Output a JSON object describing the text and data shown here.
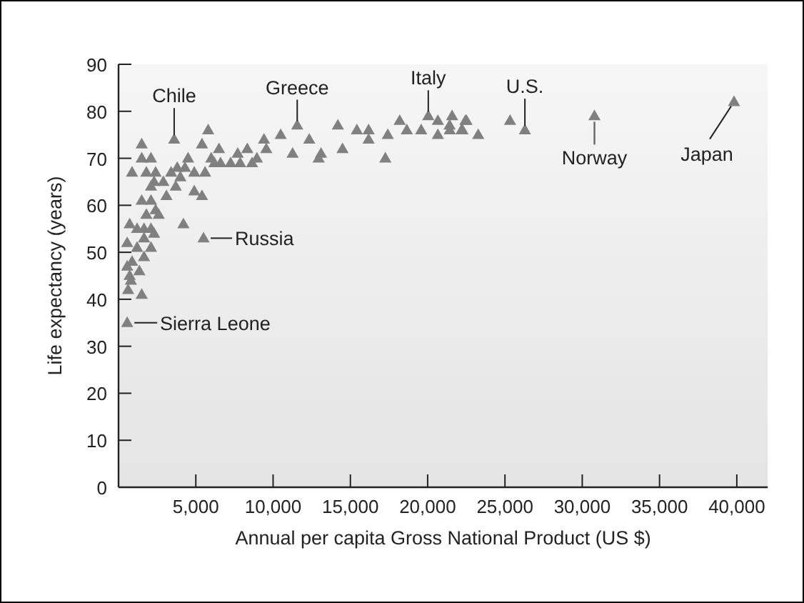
{
  "chart_data": {
    "type": "scatter",
    "xlabel": "Annual per capita Gross National Product (US $)",
    "ylabel": "Life expectancy (years)",
    "xlim": [
      0,
      42000
    ],
    "ylim": [
      0,
      90
    ],
    "xticks": [
      {
        "value": 5000,
        "label": "5,000"
      },
      {
        "value": 10000,
        "label": "10,000"
      },
      {
        "value": 15000,
        "label": "15,000"
      },
      {
        "value": 20000,
        "label": "20,000"
      },
      {
        "value": 25000,
        "label": "25,000"
      },
      {
        "value": 30000,
        "label": "30,000"
      },
      {
        "value": 35000,
        "label": "35,000"
      },
      {
        "value": 40000,
        "label": "40,000"
      }
    ],
    "yticks": [
      0,
      10,
      20,
      30,
      40,
      50,
      60,
      70,
      80,
      90
    ],
    "marker": "triangle",
    "grid": false,
    "series": [
      {
        "color": "#808080",
        "x": [
          560,
          5500,
          1500,
          3600,
          5800,
          875,
          1500,
          2100,
          1800,
          2400,
          2300,
          2100,
          2900,
          3400,
          3800,
          4500,
          4300,
          4000,
          4900,
          3700,
          3100,
          2100,
          1500,
          2400,
          2600,
          1800,
          720,
          1200,
          1650,
          2100,
          2300,
          1650,
          2100,
          560,
          1200,
          1650,
          875,
          560,
          1350,
          720,
          800,
          620,
          1500,
          4200,
          4900,
          5400,
          5600,
          5400,
          6000,
          6500,
          6600,
          6200,
          11560,
          10490,
          12340,
          14190,
          13100,
          11260,
          12950,
          14490,
          15420,
          16180,
          16180,
          17420,
          17260,
          9410,
          9560,
          8330,
          7710,
          8950,
          7250,
          8640,
          7870,
          18190,
          20040,
          20660,
          21580,
          22510,
          19580,
          20660,
          21430,
          22190,
          18650,
          22440,
          21420,
          22250,
          23270,
          25330,
          26290,
          30790,
          39820
        ],
        "values": [
          35,
          53,
          73,
          74,
          76,
          67,
          70,
          70,
          67,
          67,
          65,
          64,
          65,
          67,
          68,
          70,
          68,
          66,
          67,
          64,
          62,
          61,
          61,
          59,
          58,
          58,
          56,
          55,
          55,
          55,
          54,
          53,
          51,
          52,
          51,
          49,
          48,
          47,
          46,
          45,
          44,
          42,
          41,
          56,
          63,
          62,
          67,
          73,
          70,
          72,
          69,
          69,
          77,
          75,
          74,
          77,
          71,
          71,
          70,
          72,
          76,
          76,
          74,
          75,
          70,
          74,
          72,
          72,
          71,
          70,
          69,
          69,
          69,
          78,
          79,
          78,
          79,
          78,
          76,
          75,
          76,
          76,
          76,
          78,
          77,
          76,
          75,
          78,
          76,
          79,
          82
        ]
      }
    ],
    "annotations": [
      {
        "text": "Chile",
        "x": 3600,
        "y": 74
      },
      {
        "text": "Greece",
        "x": 11560,
        "y": 77
      },
      {
        "text": "Italy",
        "x": 20040,
        "y": 79
      },
      {
        "text": "U.S.",
        "x": 26290,
        "y": 76
      },
      {
        "text": "Norway",
        "x": 30790,
        "y": 79
      },
      {
        "text": "Japan",
        "x": 39820,
        "y": 82
      },
      {
        "text": "Russia",
        "x": 5500,
        "y": 53
      },
      {
        "text": "Sierra Leone",
        "x": 560,
        "y": 35
      }
    ]
  }
}
